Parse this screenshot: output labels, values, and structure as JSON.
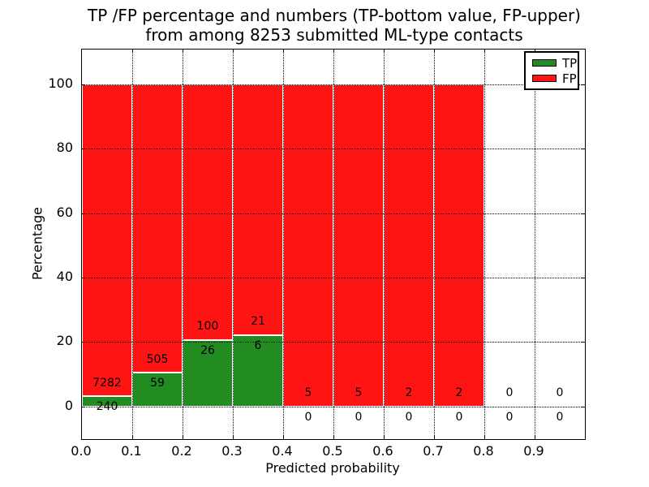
{
  "title": {
    "line1": "TP /FP percentage and numbers (TP-bottom value, FP-upper)",
    "line2": "from among 8253 submitted ML-type contacts"
  },
  "chart_data": {
    "type": "bar",
    "stacked": true,
    "normalized_percent": true,
    "title": "TP /FP percentage and numbers (TP-bottom value, FP-upper)\nfrom among 8253 submitted ML-type contacts",
    "xlabel": "Predicted probability",
    "ylabel": "Percentage",
    "total_contacts": 8253,
    "bin_width": 0.1,
    "xlim": [
      0.0,
      1.0
    ],
    "ylim": [
      -10.1,
      110.8
    ],
    "grid": "dotted",
    "x_tick_labels": [
      "0.0",
      "0.1",
      "0.2",
      "0.3",
      "0.4",
      "0.5",
      "0.6",
      "0.7",
      "0.8",
      "0.9"
    ],
    "y_ticks": [
      0,
      20,
      40,
      60,
      80,
      100
    ],
    "series": [
      {
        "name": "TP",
        "color": "#228b22",
        "counts": [
          240,
          59,
          26,
          6,
          0,
          0,
          0,
          0,
          0,
          0
        ]
      },
      {
        "name": "FP",
        "color": "#ff1414",
        "counts": [
          7282,
          505,
          100,
          21,
          5,
          5,
          2,
          2,
          0,
          0
        ]
      }
    ],
    "bins": [
      {
        "range": "0.0-0.1",
        "tp": 240,
        "fp": 7282,
        "tp_pct": 3.19,
        "fp_pct": 96.81
      },
      {
        "range": "0.1-0.2",
        "tp": 59,
        "fp": 505,
        "tp_pct": 10.46,
        "fp_pct": 89.54
      },
      {
        "range": "0.2-0.3",
        "tp": 26,
        "fp": 100,
        "tp_pct": 20.63,
        "fp_pct": 79.37
      },
      {
        "range": "0.3-0.4",
        "tp": 6,
        "fp": 21,
        "tp_pct": 22.22,
        "fp_pct": 77.78
      },
      {
        "range": "0.4-0.5",
        "tp": 0,
        "fp": 5,
        "tp_pct": 0,
        "fp_pct": 100
      },
      {
        "range": "0.5-0.6",
        "tp": 0,
        "fp": 5,
        "tp_pct": 0,
        "fp_pct": 100
      },
      {
        "range": "0.6-0.7",
        "tp": 0,
        "fp": 2,
        "tp_pct": 0,
        "fp_pct": 100
      },
      {
        "range": "0.7-0.8",
        "tp": 0,
        "fp": 2,
        "tp_pct": 0,
        "fp_pct": 100
      },
      {
        "range": "0.8-0.9",
        "tp": 0,
        "fp": 0,
        "tp_pct": 0,
        "fp_pct": 0
      },
      {
        "range": "0.9-1.0",
        "tp": 0,
        "fp": 0,
        "tp_pct": 0,
        "fp_pct": 0
      }
    ],
    "legend": {
      "position": "upper right",
      "entries": [
        {
          "label": "TP",
          "color": "#228b22"
        },
        {
          "label": "FP",
          "color": "#ff1414"
        }
      ]
    }
  }
}
